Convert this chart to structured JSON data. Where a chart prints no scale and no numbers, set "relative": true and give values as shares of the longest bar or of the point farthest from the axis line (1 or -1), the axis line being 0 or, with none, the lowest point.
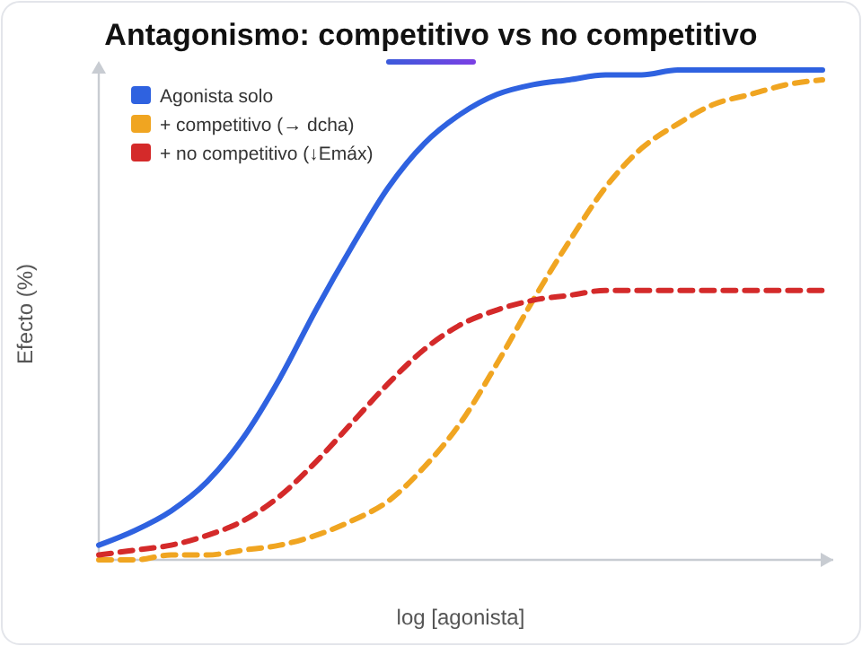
{
  "chart_data": {
    "type": "line",
    "title": "Antagonismo: competitivo vs no competitivo",
    "xlabel": "log [agonista]",
    "ylabel": "Efecto (%)",
    "relative": true,
    "legend": "top left",
    "categories": [
      null,
      null,
      null,
      null,
      null,
      null,
      null,
      null,
      null,
      null,
      null,
      null,
      null,
      null,
      null,
      null,
      null,
      null,
      null,
      null,
      null
    ],
    "series": [
      {
        "name": "Agonista solo",
        "color": "#2f62e0",
        "line_style": "solid",
        "values": [
          0.03,
          0.06,
          0.1,
          0.16,
          0.25,
          0.37,
          0.51,
          0.64,
          0.76,
          0.85,
          0.91,
          0.95,
          0.97,
          0.98,
          0.99,
          0.99,
          1,
          1,
          1,
          1,
          1
        ]
      },
      {
        "name": "+ competitivo (→ dcha)",
        "color": "#f0a521",
        "line_style": "dashed",
        "values": [
          0,
          0,
          0.01,
          0.01,
          0.02,
          0.03,
          0.05,
          0.08,
          0.12,
          0.19,
          0.28,
          0.4,
          0.53,
          0.65,
          0.76,
          0.84,
          0.89,
          0.93,
          0.95,
          0.97,
          0.98
        ]
      },
      {
        "name": "+ no competitivo (↓Emáx)",
        "color": "#d42a2a",
        "line_style": "dashed",
        "values": [
          0.01,
          0.02,
          0.03,
          0.05,
          0.08,
          0.13,
          0.2,
          0.28,
          0.36,
          0.43,
          0.48,
          0.51,
          0.53,
          0.54,
          0.55,
          0.55,
          0.55,
          0.55,
          0.55,
          0.55,
          0.55
        ]
      }
    ]
  }
}
